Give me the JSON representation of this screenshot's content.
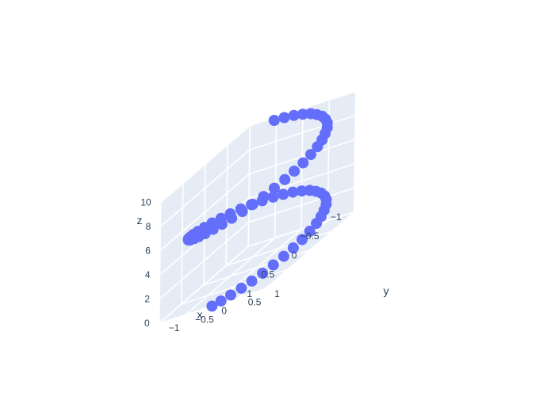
{
  "chart_data": {
    "type": "scatter3d",
    "title": "",
    "marker_color": "#636efa",
    "background": {
      "paper": "#ffffff",
      "pane": "#e5ecf6",
      "grid": "#ffffff"
    },
    "axes": {
      "x": {
        "title": "x",
        "range": [
          -1,
          1
        ],
        "ticks": [
          1,
          0.5,
          0,
          -0.5,
          -1
        ],
        "tick_labels": [
          "1",
          "0.5",
          "0",
          "−0.5",
          "−1"
        ]
      },
      "y": {
        "title": "y",
        "range": [
          -1,
          1
        ],
        "ticks": [
          -1,
          -0.5,
          0,
          0.5,
          1
        ],
        "tick_labels": [
          "−1",
          "−0.5",
          "0",
          "0.5",
          "1"
        ]
      },
      "z": {
        "title": "z",
        "range": [
          0,
          10
        ],
        "ticks": [
          0,
          2,
          4,
          6,
          8,
          10
        ],
        "tick_labels": [
          "0",
          "2",
          "4",
          "6",
          "8",
          "10"
        ]
      }
    },
    "series": [
      {
        "points": [
          {
            "x": 1.0,
            "y": 0.0,
            "z": 0.0
          },
          {
            "x": 0.99,
            "y": 0.16,
            "z": 0.16
          },
          {
            "x": 0.95,
            "y": 0.31,
            "z": 0.32
          },
          {
            "x": 0.89,
            "y": 0.46,
            "z": 0.48
          },
          {
            "x": 0.81,
            "y": 0.59,
            "z": 0.63
          },
          {
            "x": 0.71,
            "y": 0.71,
            "z": 0.79
          },
          {
            "x": 0.59,
            "y": 0.81,
            "z": 0.95
          },
          {
            "x": 0.45,
            "y": 0.89,
            "z": 1.11
          },
          {
            "x": 0.31,
            "y": 0.95,
            "z": 1.27
          },
          {
            "x": 0.16,
            "y": 0.99,
            "z": 1.43
          },
          {
            "x": 0.0,
            "y": 1.0,
            "z": 1.59
          },
          {
            "x": -0.16,
            "y": 0.99,
            "z": 1.75
          },
          {
            "x": -0.31,
            "y": 0.95,
            "z": 1.9
          },
          {
            "x": -0.45,
            "y": 0.89,
            "z": 2.06
          },
          {
            "x": -0.59,
            "y": 0.81,
            "z": 2.22
          },
          {
            "x": -0.71,
            "y": 0.71,
            "z": 2.38
          },
          {
            "x": -0.81,
            "y": 0.59,
            "z": 2.54
          },
          {
            "x": -0.89,
            "y": 0.46,
            "z": 2.7
          },
          {
            "x": -0.95,
            "y": 0.31,
            "z": 2.86
          },
          {
            "x": -0.99,
            "y": 0.16,
            "z": 3.02
          },
          {
            "x": -1.0,
            "y": 0.0,
            "z": 3.17
          },
          {
            "x": -0.99,
            "y": -0.16,
            "z": 3.33
          },
          {
            "x": -0.95,
            "y": -0.31,
            "z": 3.49
          },
          {
            "x": -0.89,
            "y": -0.45,
            "z": 3.65
          },
          {
            "x": -0.81,
            "y": -0.59,
            "z": 3.81
          },
          {
            "x": -0.71,
            "y": -0.71,
            "z": 3.97
          },
          {
            "x": -0.59,
            "y": -0.81,
            "z": 4.13
          },
          {
            "x": -0.45,
            "y": -0.89,
            "z": 4.29
          },
          {
            "x": -0.31,
            "y": -0.95,
            "z": 4.44
          },
          {
            "x": -0.16,
            "y": -0.99,
            "z": 4.6
          },
          {
            "x": 0.0,
            "y": -1.0,
            "z": 4.76
          },
          {
            "x": 0.16,
            "y": -0.99,
            "z": 4.92
          },
          {
            "x": 0.31,
            "y": -0.95,
            "z": 5.08
          },
          {
            "x": 0.45,
            "y": -0.89,
            "z": 5.24
          },
          {
            "x": 0.59,
            "y": -0.81,
            "z": 5.4
          },
          {
            "x": 0.71,
            "y": -0.71,
            "z": 5.56
          },
          {
            "x": 0.81,
            "y": -0.59,
            "z": 5.71
          },
          {
            "x": 0.89,
            "y": -0.45,
            "z": 5.87
          },
          {
            "x": 0.95,
            "y": -0.31,
            "z": 6.03
          },
          {
            "x": 0.99,
            "y": -0.16,
            "z": 6.19
          },
          {
            "x": 1.0,
            "y": 0.0,
            "z": 6.35
          },
          {
            "x": 0.99,
            "y": 0.16,
            "z": 6.51
          },
          {
            "x": 0.95,
            "y": 0.31,
            "z": 6.67
          },
          {
            "x": 0.89,
            "y": 0.46,
            "z": 6.83
          },
          {
            "x": 0.81,
            "y": 0.59,
            "z": 6.98
          },
          {
            "x": 0.71,
            "y": 0.71,
            "z": 7.14
          },
          {
            "x": 0.59,
            "y": 0.81,
            "z": 7.3
          },
          {
            "x": 0.45,
            "y": 0.89,
            "z": 7.46
          },
          {
            "x": 0.31,
            "y": 0.95,
            "z": 7.62
          },
          {
            "x": 0.16,
            "y": 0.99,
            "z": 7.78
          },
          {
            "x": 0.0,
            "y": 1.0,
            "z": 7.94
          },
          {
            "x": -0.16,
            "y": 0.99,
            "z": 8.1
          },
          {
            "x": -0.31,
            "y": 0.95,
            "z": 8.25
          },
          {
            "x": -0.45,
            "y": 0.89,
            "z": 8.41
          },
          {
            "x": -0.59,
            "y": 0.81,
            "z": 8.57
          },
          {
            "x": -0.71,
            "y": 0.71,
            "z": 8.73
          },
          {
            "x": -0.81,
            "y": 0.59,
            "z": 8.89
          },
          {
            "x": -0.89,
            "y": 0.46,
            "z": 9.05
          },
          {
            "x": -0.95,
            "y": 0.31,
            "z": 9.21
          },
          {
            "x": -0.99,
            "y": 0.16,
            "z": 9.37
          },
          {
            "x": -1.0,
            "y": 0.0,
            "z": 9.52
          },
          {
            "x": -0.99,
            "y": -0.16,
            "z": 9.68
          },
          {
            "x": -0.95,
            "y": -0.31,
            "z": 9.84
          },
          {
            "x": -0.89,
            "y": -0.45,
            "z": 10.0
          }
        ]
      }
    ]
  }
}
